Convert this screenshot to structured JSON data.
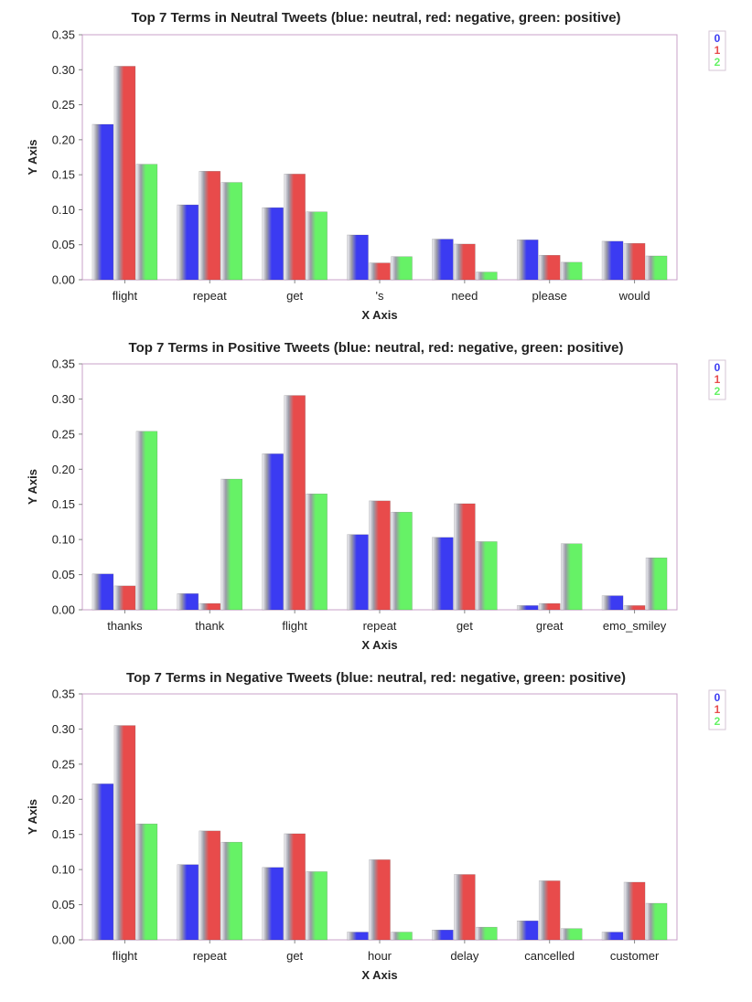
{
  "colors": {
    "0": "#3b3bf2",
    "1": "#e84b4b",
    "2": "#66f266",
    "frame": "#c9a0c9"
  },
  "chart_data": [
    {
      "type": "bar",
      "title": "Top 7 Terms in Neutral Tweets (blue: neutral, red: negative, green: positive)",
      "xlabel": "X Axis",
      "ylabel": "Y Axis",
      "ylim": [
        0,
        0.35
      ],
      "yticks": [
        "0.00",
        "0.05",
        "0.10",
        "0.15",
        "0.20",
        "0.25",
        "0.30",
        "0.35"
      ],
      "legend_position": "top-right",
      "categories": [
        "flight",
        "repeat",
        "get",
        "'s",
        "need",
        "please",
        "would"
      ],
      "series": [
        {
          "name": "0",
          "values": [
            0.222,
            0.107,
            0.103,
            0.064,
            0.058,
            0.057,
            0.055
          ]
        },
        {
          "name": "1",
          "values": [
            0.305,
            0.155,
            0.151,
            0.024,
            0.051,
            0.035,
            0.052
          ]
        },
        {
          "name": "2",
          "values": [
            0.165,
            0.139,
            0.097,
            0.033,
            0.011,
            0.025,
            0.034
          ]
        }
      ]
    },
    {
      "type": "bar",
      "title": "Top 7 Terms in Positive Tweets (blue: neutral, red: negative, green: positive)",
      "xlabel": "X Axis",
      "ylabel": "Y Axis",
      "ylim": [
        0,
        0.35
      ],
      "yticks": [
        "0.00",
        "0.05",
        "0.10",
        "0.15",
        "0.20",
        "0.25",
        "0.30",
        "0.35"
      ],
      "legend_position": "top-right",
      "categories": [
        "thanks",
        "thank",
        "flight",
        "repeat",
        "get",
        "great",
        "emo_smiley"
      ],
      "series": [
        {
          "name": "0",
          "values": [
            0.051,
            0.023,
            0.222,
            0.107,
            0.103,
            0.006,
            0.02
          ]
        },
        {
          "name": "1",
          "values": [
            0.034,
            0.009,
            0.305,
            0.155,
            0.151,
            0.009,
            0.006
          ]
        },
        {
          "name": "2",
          "values": [
            0.254,
            0.186,
            0.165,
            0.139,
            0.097,
            0.094,
            0.074
          ]
        }
      ]
    },
    {
      "type": "bar",
      "title": "Top 7 Terms in Negative Tweets (blue: neutral, red: negative, green: positive)",
      "xlabel": "X Axis",
      "ylabel": "Y Axis",
      "ylim": [
        0,
        0.35
      ],
      "yticks": [
        "0.00",
        "0.05",
        "0.10",
        "0.15",
        "0.20",
        "0.25",
        "0.30",
        "0.35"
      ],
      "legend_position": "top-right",
      "categories": [
        "flight",
        "repeat",
        "get",
        "hour",
        "delay",
        "cancelled",
        "customer"
      ],
      "series": [
        {
          "name": "0",
          "values": [
            0.222,
            0.107,
            0.103,
            0.011,
            0.014,
            0.027,
            0.011
          ]
        },
        {
          "name": "1",
          "values": [
            0.305,
            0.155,
            0.151,
            0.114,
            0.093,
            0.084,
            0.082
          ]
        },
        {
          "name": "2",
          "values": [
            0.165,
            0.139,
            0.097,
            0.011,
            0.018,
            0.016,
            0.052
          ]
        }
      ]
    }
  ]
}
